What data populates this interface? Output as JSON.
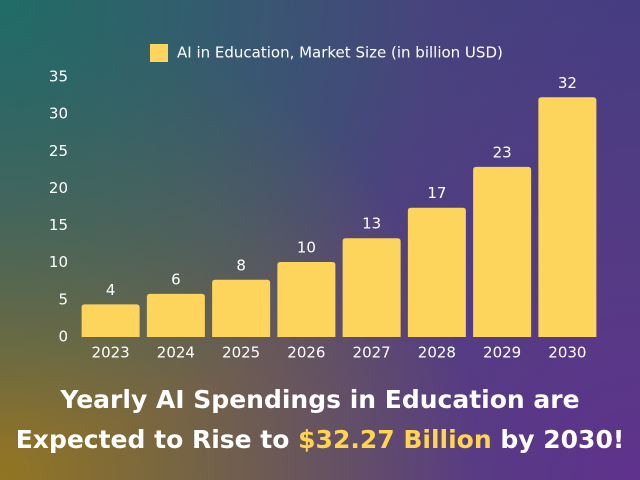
{
  "chart_data": {
    "type": "bar",
    "title": [
      "Yearly AI Spendings in Education are",
      "Expected to Rise to",
      "$32.27 Billion",
      "by 2030!"
    ],
    "legend": "AI in Education, Market Size (in billion USD)",
    "categories": [
      "2023",
      "2024",
      "2025",
      "2026",
      "2027",
      "2028",
      "2029",
      "2030"
    ],
    "values": [
      4.4,
      5.8,
      7.7,
      10.1,
      13.3,
      17.4,
      22.9,
      32.27
    ],
    "value_labels": [
      "4",
      "6",
      "8",
      "10",
      "13",
      "17",
      "23",
      "32"
    ],
    "color": "#fdd55c",
    "ylim": [
      0,
      35
    ],
    "yticks": [
      0,
      5,
      10,
      15,
      20,
      25,
      30,
      35
    ],
    "grid": false
  }
}
